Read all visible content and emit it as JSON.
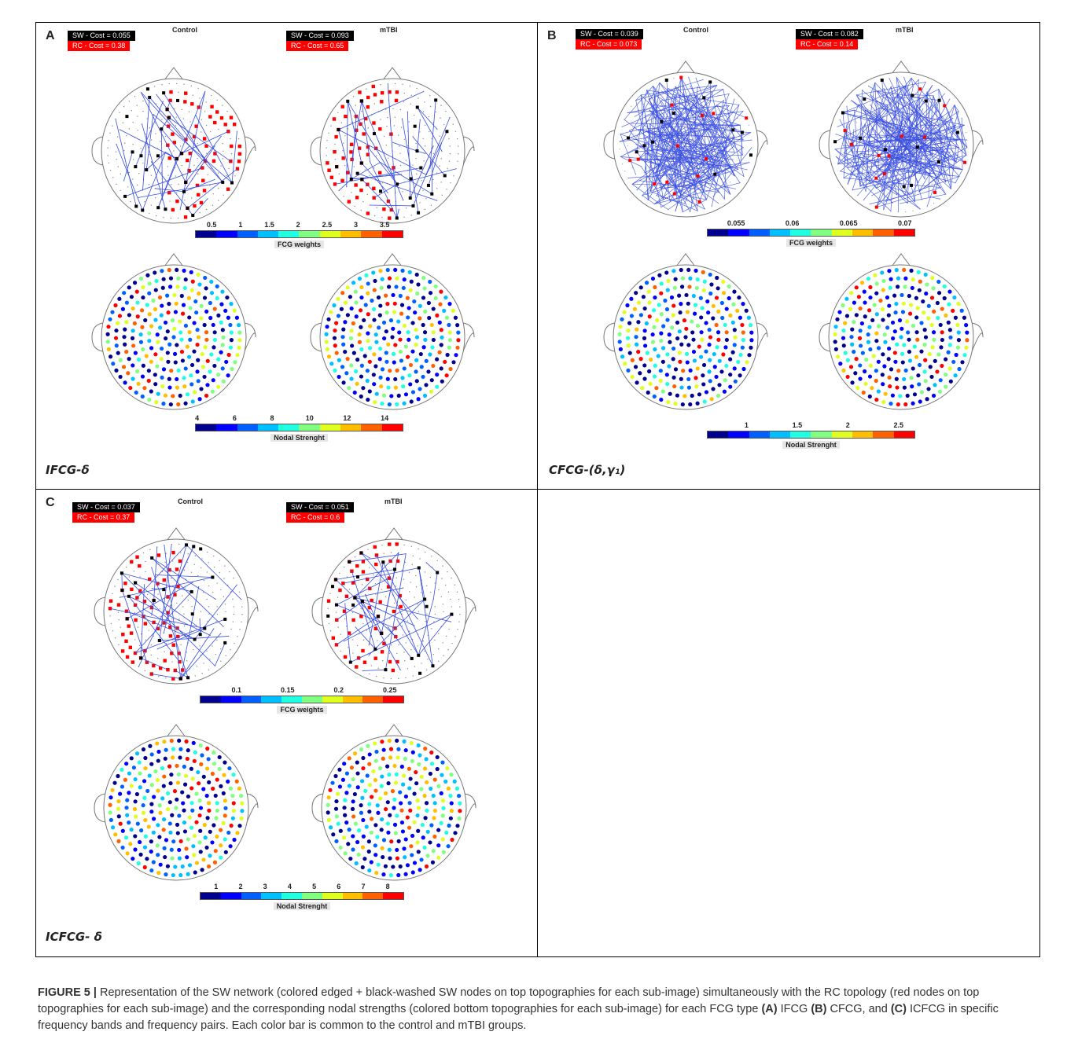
{
  "panels": {
    "A": {
      "letter": "A",
      "caption": "IFCG-δ",
      "control_label": "Control",
      "mtbi_label": "mTBI",
      "control_sw": "SW - Cost = 0.055",
      "control_rc": "RC - Cost = 0.38",
      "mtbi_sw": "SW - Cost = 0.093",
      "mtbi_rc": "RC - Cost = 0.65",
      "fcg_colorbar": {
        "title": "FCG weights",
        "ticks": [
          "0.5",
          "1",
          "1.5",
          "2",
          "2.5",
          "3",
          "3.5"
        ]
      },
      "nodal_colorbar": {
        "title": "Nodal Strenght",
        "ticks": [
          "4",
          "6",
          "8",
          "10",
          "12",
          "14"
        ]
      }
    },
    "B": {
      "letter": "B",
      "caption": "CFCG-(δ,γ₁)",
      "control_label": "Control",
      "mtbi_label": "mTBI",
      "control_sw": "SW - Cost = 0.039",
      "control_rc": "RC - Cost = 0.073",
      "mtbi_sw": "SW - Cost = 0.082",
      "mtbi_rc": "RC - Cost = 0.14",
      "fcg_colorbar": {
        "title": "FCG weights",
        "ticks": [
          "0.055",
          "0.06",
          "0.065",
          "0.07"
        ]
      },
      "nodal_colorbar": {
        "title": "Nodal Strenght",
        "ticks": [
          "1",
          "1.5",
          "2",
          "2.5"
        ]
      }
    },
    "C": {
      "letter": "C",
      "caption": "ICFCG- δ",
      "control_label": "Control",
      "mtbi_label": "mTBI",
      "control_sw": "SW - Cost = 0.037",
      "control_rc": "RC - Cost = 0.37",
      "mtbi_sw": "SW - Cost = 0.051",
      "mtbi_rc": "RC - Cost = 0.6",
      "fcg_colorbar": {
        "title": "FCG weights",
        "ticks": [
          "0.1",
          "0.15",
          "0.2",
          "0.25"
        ]
      },
      "nodal_colorbar": {
        "title": "Nodal Strenght",
        "ticks": [
          "1",
          "2",
          "3",
          "4",
          "5",
          "6",
          "7",
          "8"
        ]
      }
    }
  },
  "colors": {
    "jet": [
      "#00008f",
      "#0000ff",
      "#0060ff",
      "#00bfff",
      "#20ffdf",
      "#80ff80",
      "#dfff20",
      "#ffbf00",
      "#ff6000",
      "#ff0000"
    ],
    "rc_node": "#ff0000",
    "sw_node": "#000000",
    "edge_blue": "#3a4fe0"
  },
  "caption": {
    "figure_label": "FIGURE 5 |",
    "text_1": " Representation of the SW network (colored edged + black-washed SW nodes on top topographies for each sub-image) simultaneously with the RC topology (red nodes on top topographies for each sub-image) and the corresponding nodal strengths (colored bottom topographies for each sub-image) for each FCG type ",
    "ref_a": "(A)",
    "text_2": " IFCG ",
    "ref_b": "(B)",
    "text_3": " CFCG, and ",
    "ref_c": "(C)",
    "text_4": " ICFCG in specific frequency bands and frequency pairs. Each color bar is common to the control and mTBI groups."
  }
}
